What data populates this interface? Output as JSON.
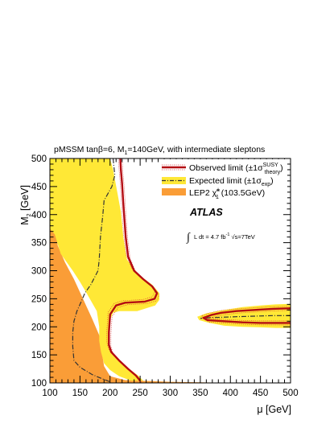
{
  "chart_data": {
    "type": "area",
    "title": "pMSSM tanβ=6, M",
    "title_sub": "1",
    "title_rest": "=140GeV, with intermediate sleptons",
    "xlabel": "μ [GeV]",
    "ylabel": "M",
    "ylabel_sub": "2",
    "ylabel_unit": " [GeV]",
    "xlim": [
      100,
      500
    ],
    "ylim": [
      100,
      500
    ],
    "x_ticks": [
      100,
      150,
      200,
      250,
      300,
      350,
      400,
      450,
      500
    ],
    "y_ticks": [
      100,
      150,
      200,
      250,
      300,
      350,
      400,
      450,
      500
    ],
    "experiment": "ATLAS",
    "lumi": "L dt = 4.7 fb",
    "lumi_sup": "-1",
    "energy": "s=7TeV",
    "legend_placement": "top-right",
    "legend": [
      {
        "label": "Observed limit (±1σ",
        "sup": "SUSY",
        "sub": "theory",
        "close": ")"
      },
      {
        "label": "Expected limit (±1σ",
        "sub": "exp",
        "close": ")"
      },
      {
        "label": "LEP2 ",
        "particle": "χ̃",
        "psup": "±",
        "psub": "1",
        "close": " (103.5GeV)"
      }
    ],
    "colors": {
      "lep": "#fa9d37",
      "band": "#ffe836",
      "observed": "#b40b12",
      "theory": "#d62828",
      "expected": "#333333"
    },
    "series": [
      {
        "name": "LEP2",
        "kind": "region",
        "points": [
          [
            100,
            100
          ],
          [
            100,
            385
          ],
          [
            108,
            385
          ],
          [
            113,
            345
          ],
          [
            125,
            315
          ],
          [
            140,
            285
          ],
          [
            155,
            250
          ],
          [
            170,
            215
          ],
          [
            182,
            185
          ],
          [
            185,
            165
          ],
          [
            190,
            130
          ],
          [
            200,
            112
          ],
          [
            225,
            105
          ],
          [
            250,
            104
          ],
          [
            275,
            103
          ],
          [
            300,
            102
          ],
          [
            350,
            101
          ],
          [
            400,
            100.5
          ],
          [
            500,
            100
          ],
          [
            500,
            100
          ]
        ]
      },
      {
        "name": "Expected band left",
        "kind": "band",
        "points": [
          [
            100,
            500
          ],
          [
            200,
            500
          ],
          [
            205,
            480
          ],
          [
            212,
            440
          ],
          [
            218,
            405
          ],
          [
            222,
            360
          ],
          [
            228,
            320
          ],
          [
            245,
            295
          ],
          [
            270,
            275
          ],
          [
            282,
            260
          ],
          [
            282,
            248
          ],
          [
            275,
            238
          ],
          [
            245,
            228
          ],
          [
            215,
            228
          ],
          [
            205,
            225
          ],
          [
            200,
            212
          ],
          [
            198,
            180
          ],
          [
            200,
            163
          ],
          [
            205,
            152
          ],
          [
            215,
            140
          ],
          [
            232,
            125
          ],
          [
            248,
            112
          ],
          [
            255,
            104
          ],
          [
            235,
            104
          ],
          [
            215,
            112
          ],
          [
            200,
            123
          ],
          [
            190,
            135
          ],
          [
            185,
            155
          ],
          [
            182,
            175
          ],
          [
            182,
            200
          ],
          [
            178,
            228
          ],
          [
            160,
            262
          ],
          [
            150,
            280
          ],
          [
            138,
            300
          ],
          [
            118,
            330
          ],
          [
            108,
            365
          ],
          [
            100,
            375
          ]
        ]
      },
      {
        "name": "Expected band right",
        "kind": "band",
        "points": [
          [
            345,
            218
          ],
          [
            360,
            224
          ],
          [
            390,
            230
          ],
          [
            420,
            235
          ],
          [
            450,
            238
          ],
          [
            475,
            240
          ],
          [
            500,
            241
          ],
          [
            500,
            198
          ],
          [
            475,
            198
          ],
          [
            450,
            199
          ],
          [
            420,
            200
          ],
          [
            390,
            202
          ],
          [
            365,
            207
          ],
          [
            348,
            212
          ]
        ]
      },
      {
        "name": "Observed limit left",
        "kind": "observed",
        "points": [
          [
            217,
            500
          ],
          [
            218,
            480
          ],
          [
            220,
            455
          ],
          [
            222,
            420
          ],
          [
            224,
            390
          ],
          [
            226,
            360
          ],
          [
            230,
            325
          ],
          [
            240,
            300
          ],
          [
            255,
            285
          ],
          [
            270,
            272
          ],
          [
            278,
            260
          ],
          [
            274,
            250
          ],
          [
            258,
            245
          ],
          [
            225,
            243
          ],
          [
            210,
            238
          ],
          [
            200,
            222
          ],
          [
            198,
            190
          ],
          [
            198,
            168
          ],
          [
            202,
            155
          ],
          [
            215,
            140
          ],
          [
            230,
            125
          ],
          [
            243,
            113
          ],
          [
            250,
            104
          ]
        ]
      },
      {
        "name": "Observed limit right",
        "kind": "observed",
        "points": [
          [
            500,
            233
          ],
          [
            470,
            232
          ],
          [
            440,
            230
          ],
          [
            410,
            228
          ],
          [
            385,
            225
          ],
          [
            368,
            221
          ],
          [
            355,
            216
          ],
          [
            362,
            212
          ],
          [
            390,
            210
          ],
          [
            420,
            208
          ],
          [
            450,
            207
          ],
          [
            500,
            207
          ]
        ]
      },
      {
        "name": "Expected limit left",
        "kind": "expected",
        "points": [
          [
            205,
            500
          ],
          [
            208,
            470
          ],
          [
            203,
            450
          ],
          [
            190,
            425
          ],
          [
            188,
            400
          ],
          [
            184,
            360
          ],
          [
            182,
            320
          ],
          [
            180,
            300
          ],
          [
            168,
            275
          ],
          [
            158,
            260
          ],
          [
            150,
            240
          ],
          [
            145,
            228
          ],
          [
            140,
            210
          ],
          [
            138,
            190
          ],
          [
            138,
            165
          ],
          [
            140,
            140
          ],
          [
            150,
            128
          ],
          [
            170,
            115
          ],
          [
            190,
            106
          ],
          [
            200,
            102
          ]
        ]
      },
      {
        "name": "Expected limit right",
        "kind": "expected",
        "points": [
          [
            500,
            220
          ],
          [
            470,
            220
          ],
          [
            440,
            219
          ],
          [
            410,
            218
          ],
          [
            385,
            217
          ],
          [
            360,
            216
          ],
          [
            350,
            215
          ]
        ]
      }
    ]
  }
}
